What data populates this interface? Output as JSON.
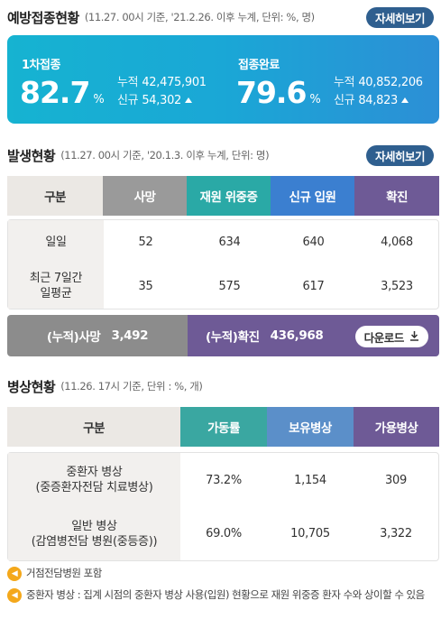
{
  "vaccination": {
    "title": "예방접종현황",
    "note": "(11.27. 00시 기준, '21.2.26. 이후 누계, 단위: %, 명)",
    "detail_label": "자세히보기",
    "first": {
      "label": "1차접종",
      "rate": "82.7",
      "unit": "%",
      "cum_label": "누적",
      "cum_value": "42,475,901",
      "new_label": "신규",
      "new_value": "54,302"
    },
    "complete": {
      "label": "접종완료",
      "rate": "79.6",
      "unit": "%",
      "cum_label": "누적",
      "cum_value": "40,852,206",
      "new_label": "신규",
      "new_value": "84,823"
    }
  },
  "occurrence": {
    "title": "발생현황",
    "note": "(11.27. 00시 기준, '20.1.3. 이후 누계, 단위: 명)",
    "detail_label": "자세히보기",
    "headers": [
      "구분",
      "사망",
      "재원 위중증",
      "신규 입원",
      "확진"
    ],
    "header_colors": [
      "#ebe8e4",
      "#9a9a9a",
      "#2aa9a6",
      "#3b7fd0",
      "#6e5a96"
    ],
    "rows": [
      {
        "label": "일일",
        "values": [
          "52",
          "634",
          "640",
          "4,068"
        ]
      },
      {
        "label": "최근 7일간\n일평균",
        "values": [
          "35",
          "575",
          "617",
          "3,523"
        ]
      }
    ],
    "cumulative": {
      "death_label": "(누적)사망",
      "death_value": "3,492",
      "confirmed_label": "(누적)확진",
      "confirmed_value": "436,968",
      "download_label": "다운로드"
    }
  },
  "beds": {
    "title": "병상현황",
    "note": "(11.26. 17시 기준, 단위 : %, 개)",
    "headers": [
      "구분",
      "가동률",
      "보유병상",
      "가용병상"
    ],
    "header_colors": [
      "#ebe8e4",
      "#3aa7a1",
      "#5b8fc9",
      "#6e5a96"
    ],
    "rows": [
      {
        "label": "중환자 병상\n(중증환자전담 치료병상)",
        "values": [
          "73.2%",
          "1,154",
          "309"
        ]
      },
      {
        "label": "일반 병상\n(감염병전담 병원(중등증))",
        "values": [
          "69.0%",
          "10,705",
          "3,322"
        ]
      }
    ]
  },
  "notes": [
    "거점전담병원 포함",
    "중환자 병상 : 집계 시점의 중환자 병상 사용(입원) 현황으로 재원 위중증 환자 수와 상이할 수 있음"
  ]
}
